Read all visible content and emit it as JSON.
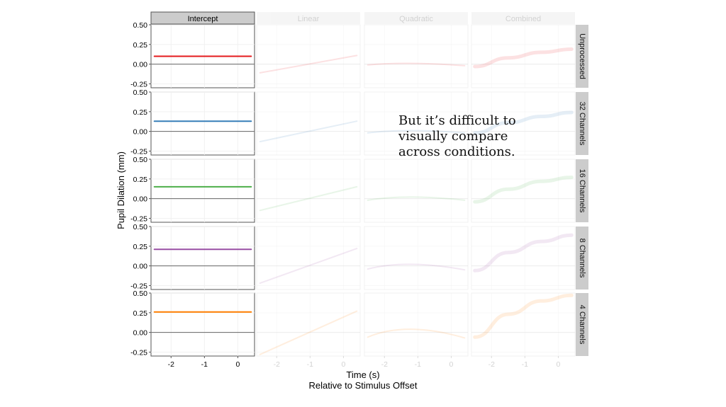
{
  "callout": "But it’s difficult to\nvisually compare\nacross conditions.",
  "chart_data": {
    "type": "line",
    "columns": [
      "Intercept",
      "Linear",
      "Quadratic",
      "Combined"
    ],
    "rows": [
      "Unprocessed",
      "32 Channels",
      "16 Channels",
      "8 Channels",
      "4 Channels"
    ],
    "highlighted_column": "Intercept",
    "ylabel": "Pupil Dilation (mm)",
    "xlabel": "Time (s)",
    "xlabel2": "Relative to Stimulus Offset",
    "xlim": [
      -2.6,
      0.5
    ],
    "ylim": [
      -0.3,
      0.5
    ],
    "x_ticks": [
      -2,
      -1,
      0
    ],
    "x_tick_labels": [
      "-2",
      "-1",
      "0"
    ],
    "y_ticks": [
      -0.25,
      0,
      0.25,
      0.5
    ],
    "y_tick_labels": [
      "-0.25",
      "0.00",
      "0.25",
      "0.50"
    ],
    "reference_line": 0,
    "grid": true,
    "colors": [
      "#e41a1c",
      "#377eb8",
      "#4daf4a",
      "#984ea3",
      "#ff7f00"
    ],
    "series": [
      {
        "row": "Unprocessed",
        "Intercept": {
          "x": [
            -2.5,
            0.4
          ],
          "y": [
            0.1,
            0.1
          ]
        },
        "Linear": {
          "x": [
            -2.5,
            0.4
          ],
          "y": [
            -0.11,
            0.11
          ]
        },
        "Quadratic": {
          "x": [
            -2.5,
            -1.2,
            0.4
          ],
          "y": [
            -0.01,
            0.01,
            -0.02
          ]
        },
        "Combined": {
          "x": [
            -2.5,
            -1.5,
            -0.5,
            0.4
          ],
          "y": [
            -0.03,
            0.08,
            0.15,
            0.19
          ]
        }
      },
      {
        "row": "32 Channels",
        "Intercept": {
          "x": [
            -2.5,
            0.4
          ],
          "y": [
            0.13,
            0.13
          ]
        },
        "Linear": {
          "x": [
            -2.5,
            0.4
          ],
          "y": [
            -0.13,
            0.13
          ]
        },
        "Quadratic": {
          "x": [
            -2.5,
            -1.2,
            0.4
          ],
          "y": [
            -0.02,
            0.01,
            -0.02
          ]
        },
        "Combined": {
          "x": [
            -2.5,
            -1.5,
            -0.5,
            0.4
          ],
          "y": [
            -0.02,
            0.11,
            0.19,
            0.24
          ]
        }
      },
      {
        "row": "16 Channels",
        "Intercept": {
          "x": [
            -2.5,
            0.4
          ],
          "y": [
            0.15,
            0.15
          ]
        },
        "Linear": {
          "x": [
            -2.5,
            0.4
          ],
          "y": [
            -0.15,
            0.15
          ]
        },
        "Quadratic": {
          "x": [
            -2.5,
            -1.2,
            0.4
          ],
          "y": [
            -0.02,
            0.02,
            -0.02
          ]
        },
        "Combined": {
          "x": [
            -2.5,
            -1.5,
            -0.5,
            0.4
          ],
          "y": [
            -0.04,
            0.12,
            0.22,
            0.27
          ]
        }
      },
      {
        "row": "8 Channels",
        "Intercept": {
          "x": [
            -2.5,
            0.4
          ],
          "y": [
            0.21,
            0.21
          ]
        },
        "Linear": {
          "x": [
            -2.5,
            0.4
          ],
          "y": [
            -0.22,
            0.22
          ]
        },
        "Quadratic": {
          "x": [
            -2.5,
            -1.2,
            0.4
          ],
          "y": [
            -0.04,
            0.02,
            -0.05
          ]
        },
        "Combined": {
          "x": [
            -2.5,
            -1.5,
            -0.5,
            0.4
          ],
          "y": [
            -0.06,
            0.17,
            0.31,
            0.39
          ]
        }
      },
      {
        "row": "4 Channels",
        "Intercept": {
          "x": [
            -2.5,
            0.4
          ],
          "y": [
            0.26,
            0.26
          ]
        },
        "Linear": {
          "x": [
            -2.5,
            0.4
          ],
          "y": [
            -0.28,
            0.27
          ]
        },
        "Quadratic": {
          "x": [
            -2.5,
            -1.2,
            0.4
          ],
          "y": [
            -0.06,
            0.04,
            -0.07
          ]
        },
        "Combined": {
          "x": [
            -2.5,
            -1.5,
            -0.5,
            0.4
          ],
          "y": [
            -0.06,
            0.23,
            0.4,
            0.47
          ]
        }
      }
    ]
  }
}
